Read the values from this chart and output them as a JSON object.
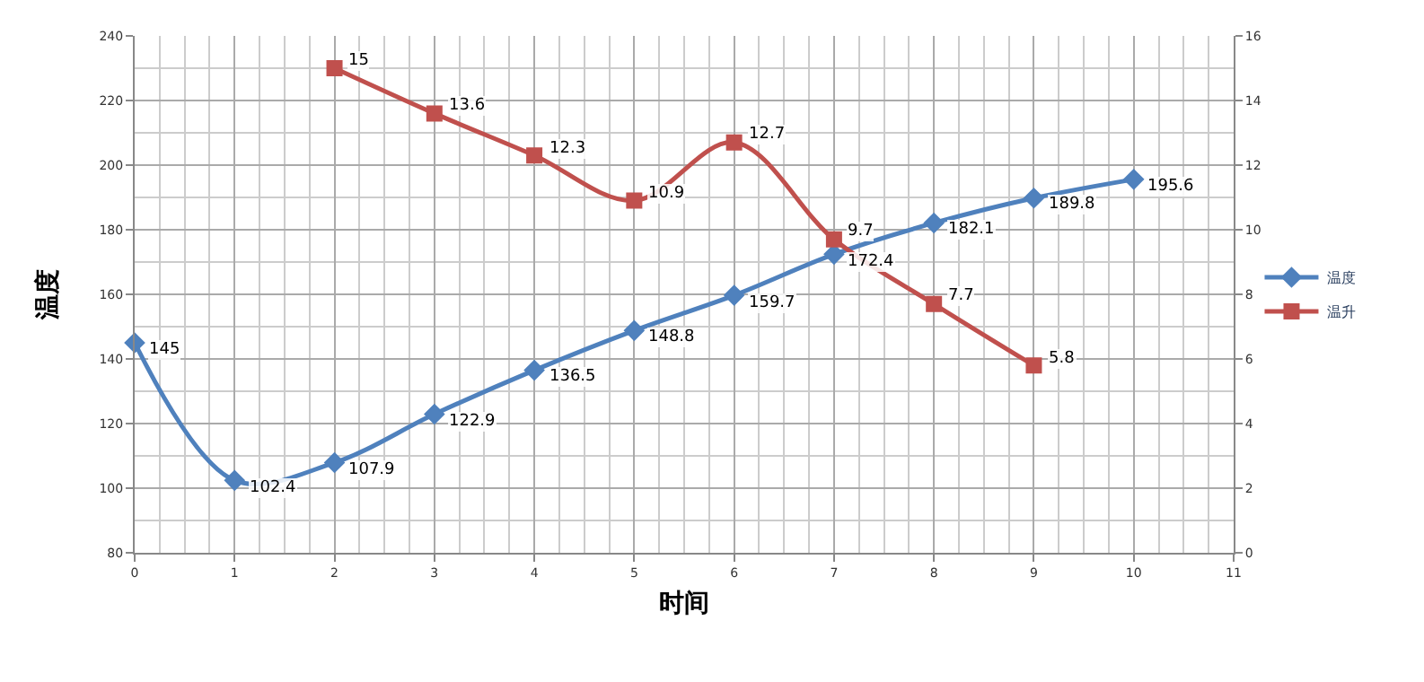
{
  "chart_data": {
    "type": "line",
    "xlabel": "时间",
    "ylabel": "温度",
    "x": [
      0,
      1,
      2,
      3,
      4,
      5,
      6,
      7,
      8,
      9,
      10
    ],
    "series": [
      {
        "name": "温度",
        "color": "#4f81bd",
        "marker": "diamond",
        "values": [
          145,
          102.4,
          107.9,
          122.9,
          136.5,
          148.8,
          159.7,
          172.4,
          182.1,
          189.8,
          195.6
        ]
      },
      {
        "name": "温升",
        "color": "#c0504d",
        "marker": "square",
        "axis": "y2",
        "x": [
          2,
          3,
          4,
          5,
          6,
          7,
          8,
          9
        ],
        "values": [
          15,
          13.6,
          12.3,
          10.9,
          12.7,
          9.7,
          7.7,
          5.8
        ]
      }
    ],
    "xlim": [
      0,
      11
    ],
    "xticks": [
      0,
      1,
      2,
      3,
      4,
      5,
      6,
      7,
      8,
      9,
      10,
      11
    ],
    "ylim": [
      80,
      240
    ],
    "yticks": [
      80,
      100,
      120,
      140,
      160,
      180,
      200,
      220,
      240
    ],
    "y2lim": [
      0,
      16
    ],
    "y2ticks": [
      0,
      2,
      4,
      6,
      8,
      10,
      12,
      14,
      16
    ],
    "data_labels": true,
    "grid": true,
    "legend": "right"
  }
}
